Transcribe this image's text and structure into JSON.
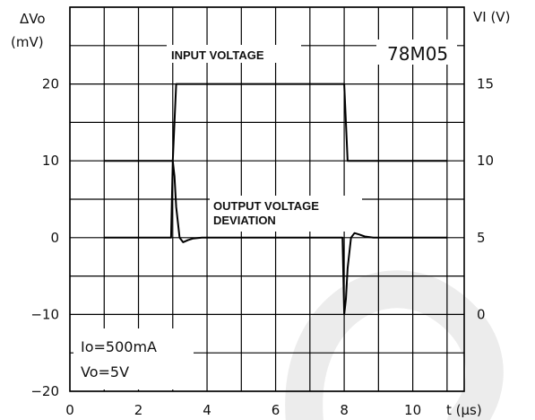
{
  "chart_data": {
    "type": "line",
    "title": "",
    "device": "78M05",
    "x_unit_label": "t (µs)",
    "xlim": [
      0,
      11.5
    ],
    "x_ticks": [
      0,
      2,
      4,
      6,
      8,
      10
    ],
    "left_axis": {
      "label_line1": "ΔVo",
      "label_line2": "(mV)",
      "ylim": [
        -20,
        30
      ],
      "ticks": [
        -20,
        -10,
        0,
        10,
        20
      ],
      "tick_labels": [
        "−20",
        "−10",
        "0",
        "10",
        "20"
      ]
    },
    "right_axis": {
      "label": "VI (V)",
      "ylim": [
        -5,
        20
      ],
      "ticks": [
        0,
        5,
        10,
        15
      ],
      "tick_labels": [
        "0",
        "5",
        "10",
        "15"
      ]
    },
    "series": [
      {
        "name": "INPUT VOLTAGE",
        "axis": "right",
        "x": [
          1.0,
          3.0,
          3.1,
          8.0,
          8.1,
          11.0
        ],
        "y": [
          10,
          10,
          15,
          15,
          10,
          10
        ]
      },
      {
        "name": "OUTPUT VOLTAGE DEVIATION",
        "name_line1": "OUTPUT VOLTAGE",
        "name_line2": "DEVIATION",
        "axis": "left",
        "x": [
          1.0,
          2.95,
          3.0,
          3.05,
          3.1,
          3.2,
          3.3,
          3.45,
          3.6,
          3.85,
          4.1,
          7.95,
          8.0,
          8.05,
          8.1,
          8.2,
          8.3,
          8.45,
          8.6,
          8.85,
          9.1,
          11.0
        ],
        "y": [
          0,
          0,
          10,
          8,
          4,
          0,
          -0.6,
          -0.3,
          -0.1,
          0,
          0,
          0,
          -10,
          -8,
          -4,
          0,
          0.6,
          0.4,
          0.15,
          0,
          0,
          0
        ]
      }
    ],
    "conditions": {
      "io": "Io=500mA",
      "vo": "Vo=5V"
    },
    "grid": true
  }
}
